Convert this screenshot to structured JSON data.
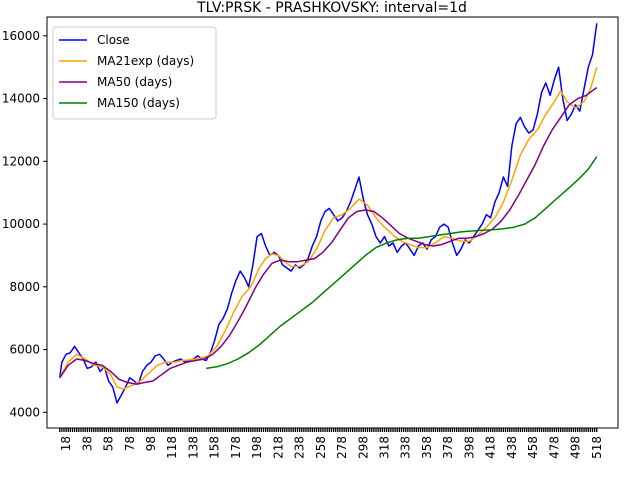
{
  "chart_data": {
    "type": "line",
    "title": "TLV:PRSK - PRASHKOVSKY: interval=1d",
    "xlabel": "",
    "ylabel": "",
    "xlim": [
      0,
      538
    ],
    "ylim": [
      3500,
      16600
    ],
    "yticks": [
      4000,
      6000,
      8000,
      10000,
      12000,
      14000,
      16000
    ],
    "ytick_labels": [
      "4000",
      "6000",
      "8000",
      "10000",
      "12000",
      "14000",
      "16000"
    ],
    "xtick_labels": [
      "18",
      "38",
      "58",
      "78",
      "98",
      "118",
      "138",
      "158",
      "178",
      "198",
      "218",
      "238",
      "258",
      "278",
      "298",
      "318",
      "338",
      "358",
      "378",
      "398",
      "418",
      "438",
      "458",
      "478",
      "498",
      "518"
    ],
    "legend_position": "upper-left",
    "series": [
      {
        "name": "Close",
        "color": "#0000ff",
        "points": [
          [
            12,
            5100
          ],
          [
            14,
            5600
          ],
          [
            18,
            5850
          ],
          [
            22,
            5900
          ],
          [
            26,
            6100
          ],
          [
            30,
            5900
          ],
          [
            34,
            5700
          ],
          [
            38,
            5400
          ],
          [
            42,
            5450
          ],
          [
            46,
            5600
          ],
          [
            50,
            5300
          ],
          [
            54,
            5450
          ],
          [
            58,
            5000
          ],
          [
            62,
            4800
          ],
          [
            66,
            4300
          ],
          [
            70,
            4550
          ],
          [
            74,
            4800
          ],
          [
            78,
            5100
          ],
          [
            82,
            5000
          ],
          [
            86,
            4900
          ],
          [
            90,
            5300
          ],
          [
            94,
            5500
          ],
          [
            98,
            5600
          ],
          [
            102,
            5800
          ],
          [
            106,
            5850
          ],
          [
            110,
            5700
          ],
          [
            114,
            5500
          ],
          [
            118,
            5600
          ],
          [
            122,
            5650
          ],
          [
            126,
            5700
          ],
          [
            130,
            5600
          ],
          [
            134,
            5650
          ],
          [
            138,
            5700
          ],
          [
            142,
            5800
          ],
          [
            146,
            5700
          ],
          [
            150,
            5650
          ],
          [
            154,
            5900
          ],
          [
            158,
            6300
          ],
          [
            162,
            6800
          ],
          [
            166,
            7000
          ],
          [
            170,
            7300
          ],
          [
            174,
            7800
          ],
          [
            178,
            8200
          ],
          [
            182,
            8500
          ],
          [
            186,
            8300
          ],
          [
            190,
            8000
          ],
          [
            194,
            8700
          ],
          [
            198,
            9600
          ],
          [
            202,
            9700
          ],
          [
            206,
            9300
          ],
          [
            210,
            9000
          ],
          [
            214,
            9100
          ],
          [
            218,
            9000
          ],
          [
            222,
            8700
          ],
          [
            226,
            8600
          ],
          [
            230,
            8500
          ],
          [
            234,
            8700
          ],
          [
            238,
            8600
          ],
          [
            242,
            8700
          ],
          [
            246,
            8900
          ],
          [
            250,
            9300
          ],
          [
            254,
            9600
          ],
          [
            258,
            10100
          ],
          [
            262,
            10400
          ],
          [
            266,
            10500
          ],
          [
            270,
            10300
          ],
          [
            274,
            10100
          ],
          [
            278,
            10200
          ],
          [
            282,
            10400
          ],
          [
            286,
            10700
          ],
          [
            290,
            11100
          ],
          [
            294,
            11500
          ],
          [
            298,
            10800
          ],
          [
            302,
            10300
          ],
          [
            306,
            10000
          ],
          [
            310,
            9600
          ],
          [
            314,
            9400
          ],
          [
            318,
            9600
          ],
          [
            322,
            9300
          ],
          [
            326,
            9400
          ],
          [
            330,
            9100
          ],
          [
            334,
            9300
          ],
          [
            338,
            9400
          ],
          [
            342,
            9200
          ],
          [
            346,
            9000
          ],
          [
            350,
            9300
          ],
          [
            354,
            9400
          ],
          [
            358,
            9200
          ],
          [
            362,
            9500
          ],
          [
            366,
            9600
          ],
          [
            370,
            9900
          ],
          [
            374,
            10000
          ],
          [
            378,
            9900
          ],
          [
            382,
            9400
          ],
          [
            386,
            9000
          ],
          [
            390,
            9200
          ],
          [
            394,
            9500
          ],
          [
            398,
            9400
          ],
          [
            402,
            9600
          ],
          [
            406,
            9800
          ],
          [
            410,
            10000
          ],
          [
            414,
            10300
          ],
          [
            418,
            10200
          ],
          [
            422,
            10700
          ],
          [
            426,
            11000
          ],
          [
            430,
            11500
          ],
          [
            434,
            11200
          ],
          [
            438,
            12500
          ],
          [
            442,
            13200
          ],
          [
            446,
            13400
          ],
          [
            450,
            13100
          ],
          [
            454,
            12900
          ],
          [
            458,
            13000
          ],
          [
            462,
            13500
          ],
          [
            466,
            14200
          ],
          [
            470,
            14500
          ],
          [
            474,
            14100
          ],
          [
            478,
            14600
          ],
          [
            482,
            15000
          ],
          [
            486,
            14000
          ],
          [
            490,
            13300
          ],
          [
            494,
            13500
          ],
          [
            498,
            13800
          ],
          [
            502,
            13600
          ],
          [
            506,
            14300
          ],
          [
            510,
            15000
          ],
          [
            514,
            15400
          ],
          [
            518,
            16400
          ]
        ]
      },
      {
        "name": "MA21exp (days)",
        "color": "#ffa500",
        "points": [
          [
            12,
            5100
          ],
          [
            20,
            5600
          ],
          [
            28,
            5850
          ],
          [
            36,
            5700
          ],
          [
            44,
            5500
          ],
          [
            52,
            5450
          ],
          [
            60,
            5200
          ],
          [
            66,
            4800
          ],
          [
            72,
            4750
          ],
          [
            80,
            4850
          ],
          [
            88,
            5000
          ],
          [
            96,
            5250
          ],
          [
            104,
            5500
          ],
          [
            112,
            5600
          ],
          [
            120,
            5600
          ],
          [
            128,
            5650
          ],
          [
            136,
            5680
          ],
          [
            144,
            5720
          ],
          [
            152,
            5800
          ],
          [
            160,
            6100
          ],
          [
            168,
            6600
          ],
          [
            176,
            7200
          ],
          [
            184,
            7700
          ],
          [
            192,
            8000
          ],
          [
            200,
            8600
          ],
          [
            206,
            8900
          ],
          [
            212,
            9050
          ],
          [
            218,
            9000
          ],
          [
            224,
            8800
          ],
          [
            230,
            8650
          ],
          [
            238,
            8650
          ],
          [
            246,
            8800
          ],
          [
            254,
            9200
          ],
          [
            262,
            9800
          ],
          [
            270,
            10200
          ],
          [
            278,
            10300
          ],
          [
            286,
            10500
          ],
          [
            294,
            10800
          ],
          [
            302,
            10600
          ],
          [
            310,
            10200
          ],
          [
            318,
            9900
          ],
          [
            326,
            9650
          ],
          [
            334,
            9450
          ],
          [
            342,
            9350
          ],
          [
            350,
            9250
          ],
          [
            358,
            9250
          ],
          [
            366,
            9400
          ],
          [
            374,
            9600
          ],
          [
            382,
            9550
          ],
          [
            390,
            9450
          ],
          [
            398,
            9450
          ],
          [
            406,
            9650
          ],
          [
            414,
            9900
          ],
          [
            422,
            10200
          ],
          [
            430,
            10700
          ],
          [
            438,
            11400
          ],
          [
            446,
            12200
          ],
          [
            454,
            12700
          ],
          [
            462,
            13000
          ],
          [
            470,
            13500
          ],
          [
            478,
            13900
          ],
          [
            484,
            14250
          ],
          [
            490,
            13900
          ],
          [
            498,
            13700
          ],
          [
            506,
            13900
          ],
          [
            512,
            14300
          ],
          [
            518,
            15000
          ]
        ]
      },
      {
        "name": "MA50 (days)",
        "color": "#800080",
        "points": [
          [
            12,
            5100
          ],
          [
            20,
            5500
          ],
          [
            28,
            5700
          ],
          [
            36,
            5650
          ],
          [
            44,
            5550
          ],
          [
            52,
            5500
          ],
          [
            60,
            5300
          ],
          [
            68,
            5050
          ],
          [
            76,
            4950
          ],
          [
            84,
            4900
          ],
          [
            92,
            4950
          ],
          [
            100,
            5000
          ],
          [
            108,
            5200
          ],
          [
            116,
            5400
          ],
          [
            124,
            5500
          ],
          [
            132,
            5600
          ],
          [
            140,
            5650
          ],
          [
            148,
            5700
          ],
          [
            156,
            5850
          ],
          [
            164,
            6100
          ],
          [
            172,
            6450
          ],
          [
            180,
            6900
          ],
          [
            188,
            7400
          ],
          [
            196,
            7950
          ],
          [
            204,
            8400
          ],
          [
            212,
            8750
          ],
          [
            220,
            8850
          ],
          [
            228,
            8800
          ],
          [
            236,
            8800
          ],
          [
            244,
            8850
          ],
          [
            252,
            8900
          ],
          [
            260,
            9100
          ],
          [
            268,
            9400
          ],
          [
            276,
            9800
          ],
          [
            284,
            10200
          ],
          [
            292,
            10400
          ],
          [
            300,
            10450
          ],
          [
            308,
            10400
          ],
          [
            316,
            10200
          ],
          [
            324,
            9950
          ],
          [
            332,
            9700
          ],
          [
            340,
            9550
          ],
          [
            348,
            9450
          ],
          [
            356,
            9350
          ],
          [
            364,
            9300
          ],
          [
            372,
            9350
          ],
          [
            380,
            9450
          ],
          [
            388,
            9550
          ],
          [
            396,
            9550
          ],
          [
            404,
            9600
          ],
          [
            412,
            9700
          ],
          [
            420,
            9850
          ],
          [
            428,
            10100
          ],
          [
            436,
            10450
          ],
          [
            444,
            10900
          ],
          [
            452,
            11400
          ],
          [
            460,
            11900
          ],
          [
            468,
            12500
          ],
          [
            476,
            13000
          ],
          [
            484,
            13400
          ],
          [
            492,
            13800
          ],
          [
            500,
            14000
          ],
          [
            508,
            14100
          ],
          [
            514,
            14250
          ],
          [
            518,
            14350
          ]
        ]
      },
      {
        "name": "MA150 (days)",
        "color": "#008000",
        "points": [
          [
            150,
            5400
          ],
          [
            160,
            5450
          ],
          [
            170,
            5550
          ],
          [
            180,
            5700
          ],
          [
            190,
            5900
          ],
          [
            200,
            6150
          ],
          [
            210,
            6450
          ],
          [
            220,
            6750
          ],
          [
            230,
            7000
          ],
          [
            240,
            7250
          ],
          [
            250,
            7500
          ],
          [
            260,
            7800
          ],
          [
            270,
            8100
          ],
          [
            280,
            8400
          ],
          [
            290,
            8700
          ],
          [
            300,
            9000
          ],
          [
            310,
            9250
          ],
          [
            320,
            9400
          ],
          [
            330,
            9500
          ],
          [
            340,
            9550
          ],
          [
            350,
            9550
          ],
          [
            360,
            9600
          ],
          [
            370,
            9650
          ],
          [
            380,
            9700
          ],
          [
            390,
            9750
          ],
          [
            400,
            9780
          ],
          [
            410,
            9800
          ],
          [
            420,
            9820
          ],
          [
            430,
            9850
          ],
          [
            440,
            9900
          ],
          [
            450,
            10000
          ],
          [
            460,
            10200
          ],
          [
            470,
            10500
          ],
          [
            480,
            10800
          ],
          [
            490,
            11100
          ],
          [
            500,
            11400
          ],
          [
            510,
            11750
          ],
          [
            518,
            12150
          ]
        ]
      }
    ]
  }
}
